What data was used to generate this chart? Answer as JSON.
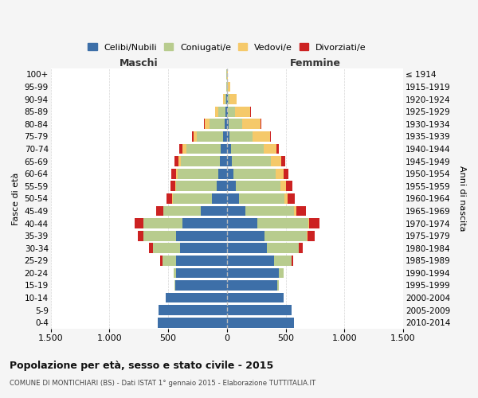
{
  "age_groups": [
    "0-4",
    "5-9",
    "10-14",
    "15-19",
    "20-24",
    "25-29",
    "30-34",
    "35-39",
    "40-44",
    "45-49",
    "50-54",
    "55-59",
    "60-64",
    "65-69",
    "70-74",
    "75-79",
    "80-84",
    "85-89",
    "90-94",
    "95-99",
    "100+"
  ],
  "birth_years": [
    "2010-2014",
    "2005-2009",
    "2000-2004",
    "1995-1999",
    "1990-1994",
    "1985-1989",
    "1980-1984",
    "1975-1979",
    "1970-1974",
    "1965-1969",
    "1960-1964",
    "1955-1959",
    "1950-1954",
    "1945-1949",
    "1940-1944",
    "1935-1939",
    "1930-1934",
    "1925-1929",
    "1920-1924",
    "1915-1919",
    "≤ 1914"
  ],
  "maschi": {
    "celibi": [
      590,
      580,
      520,
      440,
      430,
      430,
      400,
      430,
      380,
      220,
      130,
      90,
      70,
      60,
      55,
      35,
      20,
      10,
      5,
      2,
      2
    ],
    "coniugati": [
      0,
      1,
      2,
      5,
      20,
      120,
      230,
      280,
      330,
      320,
      330,
      340,
      350,
      330,
      290,
      220,
      130,
      60,
      15,
      3,
      1
    ],
    "vedovi": [
      0,
      0,
      0,
      0,
      0,
      0,
      1,
      1,
      2,
      3,
      5,
      10,
      15,
      20,
      30,
      30,
      40,
      30,
      10,
      3,
      1
    ],
    "divorziati": [
      0,
      0,
      0,
      1,
      3,
      15,
      30,
      50,
      70,
      60,
      50,
      40,
      40,
      35,
      30,
      10,
      5,
      2,
      1,
      0,
      0
    ]
  },
  "femmine": {
    "nubili": [
      570,
      550,
      480,
      430,
      440,
      400,
      340,
      320,
      260,
      160,
      100,
      75,
      55,
      45,
      35,
      25,
      18,
      10,
      5,
      2,
      2
    ],
    "coniugate": [
      0,
      1,
      3,
      10,
      40,
      150,
      270,
      360,
      430,
      410,
      390,
      380,
      360,
      330,
      280,
      190,
      110,
      60,
      20,
      5,
      2
    ],
    "vedove": [
      0,
      0,
      0,
      0,
      1,
      2,
      3,
      5,
      10,
      20,
      30,
      50,
      70,
      90,
      110,
      150,
      160,
      130,
      60,
      20,
      5
    ],
    "divorziate": [
      0,
      0,
      0,
      1,
      3,
      15,
      35,
      60,
      90,
      80,
      60,
      50,
      40,
      30,
      20,
      10,
      5,
      2,
      1,
      0,
      0
    ]
  },
  "colors": {
    "celibi_nubili": "#3d6fa8",
    "coniugati_e": "#b8cc8e",
    "vedovi_e": "#f5c96a",
    "divorziati_e": "#cc2222"
  },
  "xlim": 1500,
  "title": "Popolazione per età, sesso e stato civile - 2015",
  "subtitle": "COMUNE DI MONTICHIARI (BS) - Dati ISTAT 1° gennaio 2015 - Elaborazione TUTTITALIA.IT",
  "xlabel_left": "Maschi",
  "xlabel_right": "Femmine",
  "ylabel_left": "Fasce di età",
  "ylabel_right": "Anni di nascita",
  "legend_labels": [
    "Celibi/Nubili",
    "Coniugati/e",
    "Vedovi/e",
    "Divorziati/e"
  ],
  "background_color": "#f5f5f5",
  "plot_bg_color": "#ffffff",
  "grid_color": "#cccccc",
  "bar_height": 0.82
}
